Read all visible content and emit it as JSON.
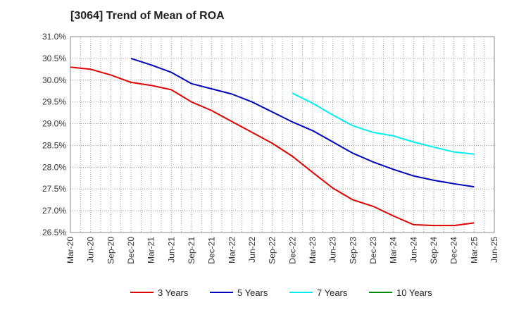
{
  "chart_data": {
    "type": "line",
    "title": "[3064]  Trend of Mean of ROA",
    "xlabel": "",
    "ylabel": "",
    "grid": true,
    "legend_position": "bottom",
    "x": [
      "Mar-20",
      "Jun-20",
      "Sep-20",
      "Dec-20",
      "Mar-21",
      "Jun-21",
      "Sep-21",
      "Dec-21",
      "Mar-22",
      "Jun-22",
      "Sep-22",
      "Dec-22",
      "Mar-23",
      "Jun-23",
      "Sep-23",
      "Dec-23",
      "Mar-24",
      "Jun-24",
      "Sep-24",
      "Dec-24",
      "Mar-25",
      "Jun-25"
    ],
    "ylim": [
      26.5,
      31.0
    ],
    "yticks": [
      "31.0%",
      "30.5%",
      "30.0%",
      "29.5%",
      "29.0%",
      "28.5%",
      "28.0%",
      "27.5%",
      "27.0%",
      "26.5%"
    ],
    "series": [
      {
        "name": "3 Years",
        "color": "#dd0000",
        "values": [
          30.3,
          30.25,
          30.12,
          29.95,
          29.88,
          29.78,
          29.5,
          29.3,
          29.05,
          28.8,
          28.55,
          28.25,
          27.88,
          27.52,
          27.25,
          27.1,
          26.88,
          26.68,
          26.66,
          26.66,
          26.72,
          null
        ]
      },
      {
        "name": "5 Years",
        "color": "#0000bb",
        "values": [
          null,
          null,
          null,
          30.5,
          30.35,
          30.18,
          29.92,
          29.8,
          29.68,
          29.5,
          29.27,
          29.04,
          28.84,
          28.58,
          28.32,
          28.12,
          27.95,
          27.8,
          27.7,
          27.62,
          27.55,
          null
        ]
      },
      {
        "name": "7 Years",
        "color": "#00eeee",
        "values": [
          null,
          null,
          null,
          null,
          null,
          null,
          null,
          null,
          null,
          null,
          null,
          29.7,
          29.47,
          29.2,
          28.95,
          28.8,
          28.72,
          28.58,
          28.46,
          28.35,
          28.3,
          null
        ]
      },
      {
        "name": "10 Years",
        "color": "#008800",
        "values": [
          null,
          null,
          null,
          null,
          null,
          null,
          null,
          null,
          null,
          null,
          null,
          null,
          null,
          null,
          null,
          null,
          null,
          null,
          null,
          null,
          null,
          null
        ]
      }
    ]
  }
}
